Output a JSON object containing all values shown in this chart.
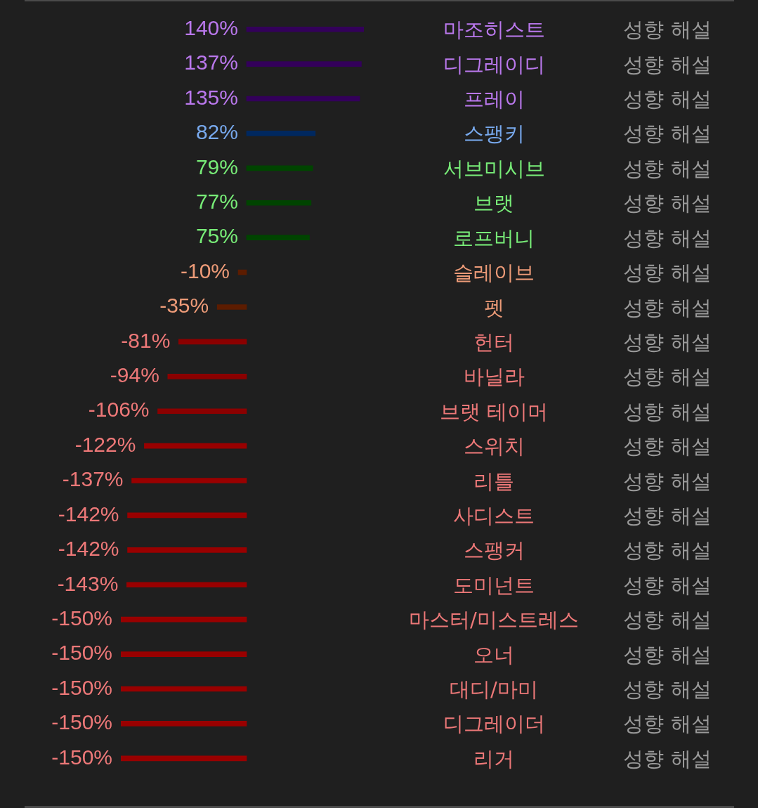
{
  "chart_data": {
    "type": "bar",
    "orientation": "horizontal",
    "categories": [
      "마조히스트",
      "디그레이디",
      "프레이",
      "스팽키",
      "서브미시브",
      "브랫",
      "로프버니",
      "슬레이브",
      "펫",
      "헌터",
      "바닐라",
      "브랫 테이머",
      "스위치",
      "리틀",
      "사디스트",
      "스팽커",
      "도미넌트",
      "마스터/미스트레스",
      "오너",
      "대디/마미",
      "디그레이더",
      "리거"
    ],
    "values": [
      140,
      137,
      135,
      82,
      79,
      77,
      75,
      -10,
      -35,
      -81,
      -94,
      -106,
      -122,
      -137,
      -142,
      -142,
      -143,
      -150,
      -150,
      -150,
      -150,
      -150
    ],
    "value_labels": [
      "140%",
      "137%",
      "135%",
      "82%",
      "79%",
      "77%",
      "75%",
      "-10%",
      "-35%",
      "-81%",
      "-94%",
      "-106%",
      "-122%",
      "-137%",
      "-142%",
      "-142%",
      "-143%",
      "-150%",
      "-150%",
      "-150%",
      "-150%",
      "-150%"
    ],
    "colors": [
      "#33005a",
      "#33005a",
      "#33005a",
      "#00285f",
      "#004400",
      "#004400",
      "#004400",
      "#5c1c00",
      "#5c1c00",
      "#8b0000",
      "#8b0000",
      "#8b0000",
      "#990000",
      "#990000",
      "#990000",
      "#990000",
      "#990000",
      "#990000",
      "#990000",
      "#990000",
      "#990000",
      "#990000"
    ],
    "xlim": [
      -150,
      140
    ],
    "tick_labels": "y",
    "annotations": [
      "성향 해설",
      "성향 해설",
      "성향 해설",
      "성향 해설",
      "성향 해설",
      "성향 해설",
      "성향 해설",
      "성향 해설",
      "성향 해설",
      "성향 해설",
      "성향 해설",
      "성향 해설",
      "성향 해설",
      "성향 해설",
      "성향 해설",
      "성향 해설",
      "성향 해설",
      "성향 해설",
      "성향 해설",
      "성향 해설",
      "성향 해설",
      "성향 해설"
    ]
  }
}
